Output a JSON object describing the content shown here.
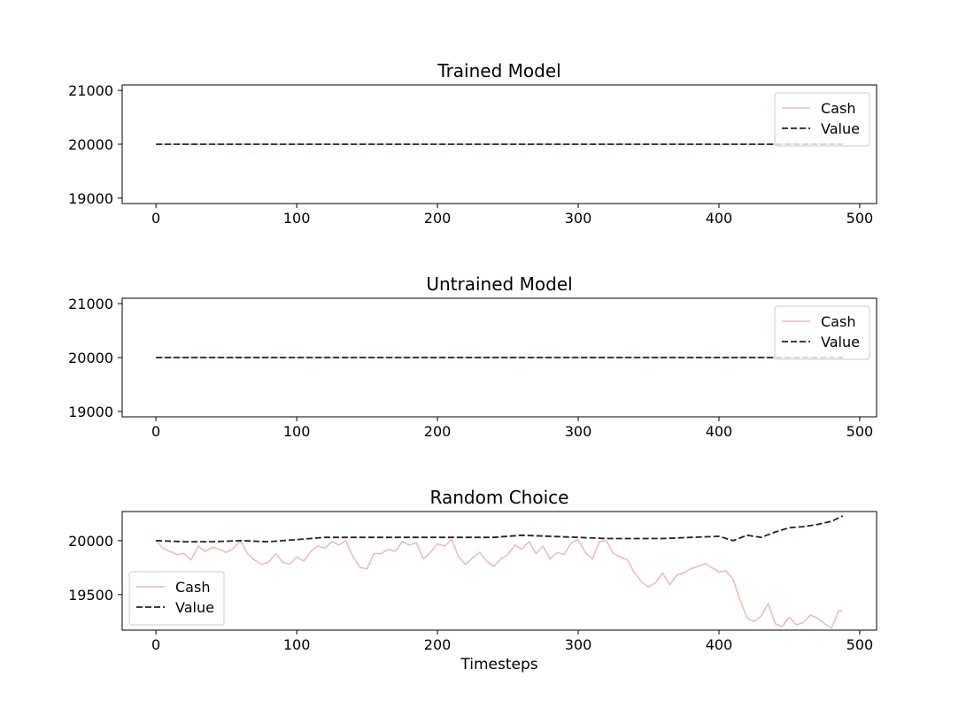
{
  "figure": {
    "xlabel": "Timesteps"
  },
  "chart_data": [
    {
      "type": "line",
      "title": "Trained Model",
      "xlabel": "",
      "ylabel": "",
      "xlim": [
        -24,
        512
      ],
      "ylim": [
        18900,
        21100
      ],
      "xticks": [
        0,
        100,
        200,
        300,
        400,
        500
      ],
      "yticks": [
        19000,
        20000,
        21000
      ],
      "grid": false,
      "legend": "top-right",
      "series": [
        {
          "name": "Cash",
          "color": "#e6bcb8",
          "dash": "solid",
          "x": [
            0,
            488
          ],
          "y": [
            20000,
            20000
          ]
        },
        {
          "name": "Value",
          "color": "#241f3d",
          "dash": "dashed",
          "x": [
            0,
            488
          ],
          "y": [
            20000,
            20000
          ]
        }
      ]
    },
    {
      "type": "line",
      "title": "Untrained Model",
      "xlabel": "",
      "ylabel": "",
      "xlim": [
        -24,
        512
      ],
      "ylim": [
        18900,
        21100
      ],
      "xticks": [
        0,
        100,
        200,
        300,
        400,
        500
      ],
      "yticks": [
        19000,
        20000,
        21000
      ],
      "grid": false,
      "legend": "top-right",
      "series": [
        {
          "name": "Cash",
          "color": "#e6bcb8",
          "dash": "solid",
          "x": [
            0,
            488
          ],
          "y": [
            20000,
            20000
          ]
        },
        {
          "name": "Value",
          "color": "#241f3d",
          "dash": "dashed",
          "x": [
            0,
            488
          ],
          "y": [
            20000,
            20000
          ]
        }
      ]
    },
    {
      "type": "line",
      "title": "Random Choice",
      "xlabel": "Timesteps",
      "ylabel": "",
      "xlim": [
        -24,
        512
      ],
      "ylim": [
        19170,
        20270
      ],
      "xticks": [
        0,
        100,
        200,
        300,
        400,
        500
      ],
      "yticks": [
        19500,
        20000
      ],
      "grid": false,
      "legend": "bottom-left",
      "series": [
        {
          "name": "Cash",
          "color": "#e6bcb8",
          "dash": "solid",
          "x": [
            0,
            5,
            10,
            15,
            20,
            25,
            30,
            35,
            40,
            45,
            50,
            55,
            60,
            65,
            70,
            75,
            80,
            85,
            90,
            95,
            100,
            105,
            110,
            115,
            120,
            125,
            130,
            135,
            140,
            145,
            150,
            155,
            160,
            165,
            170,
            175,
            180,
            185,
            190,
            195,
            200,
            205,
            210,
            215,
            220,
            225,
            230,
            235,
            240,
            245,
            250,
            255,
            260,
            265,
            270,
            275,
            280,
            285,
            290,
            295,
            300,
            305,
            310,
            315,
            320,
            325,
            330,
            335,
            340,
            345,
            350,
            355,
            360,
            365,
            370,
            375,
            380,
            385,
            390,
            395,
            400,
            405,
            410,
            415,
            420,
            425,
            430,
            435,
            440,
            445,
            450,
            455,
            460,
            465,
            470,
            475,
            480,
            485,
            488
          ],
          "y": [
            20000,
            19930,
            19900,
            19870,
            19880,
            19820,
            19950,
            19900,
            19940,
            19920,
            19890,
            19930,
            20000,
            19880,
            19820,
            19780,
            19800,
            19880,
            19800,
            19780,
            19850,
            19810,
            19900,
            19950,
            19930,
            19990,
            19960,
            20000,
            19850,
            19750,
            19740,
            19880,
            19880,
            19920,
            19900,
            19990,
            19960,
            19980,
            19830,
            19890,
            19970,
            19950,
            20010,
            19850,
            19780,
            19840,
            19890,
            19810,
            19760,
            19830,
            19870,
            19960,
            19920,
            19990,
            19880,
            19950,
            19830,
            19890,
            19870,
            19980,
            20010,
            19890,
            19830,
            19990,
            20000,
            19880,
            19850,
            19820,
            19700,
            19620,
            19570,
            19610,
            19700,
            19590,
            19680,
            19700,
            19740,
            19760,
            19790,
            19750,
            19710,
            19720,
            19640,
            19450,
            19280,
            19250,
            19300,
            19420,
            19230,
            19200,
            19290,
            19220,
            19240,
            19310,
            19280,
            19230,
            19190,
            19350,
            19350
          ]
        },
        {
          "name": "Value",
          "color": "#241f3d",
          "dash": "dashed",
          "x": [
            0,
            20,
            40,
            60,
            80,
            100,
            120,
            140,
            160,
            180,
            200,
            220,
            240,
            260,
            280,
            300,
            320,
            340,
            360,
            380,
            400,
            410,
            420,
            430,
            440,
            450,
            460,
            470,
            480,
            488
          ],
          "y": [
            20000,
            19990,
            19990,
            20000,
            19990,
            20010,
            20030,
            20030,
            20030,
            20030,
            20030,
            20030,
            20030,
            20050,
            20040,
            20030,
            20020,
            20020,
            20020,
            20030,
            20040,
            20000,
            20050,
            20030,
            20080,
            20120,
            20130,
            20150,
            20180,
            20230
          ]
        }
      ]
    }
  ]
}
